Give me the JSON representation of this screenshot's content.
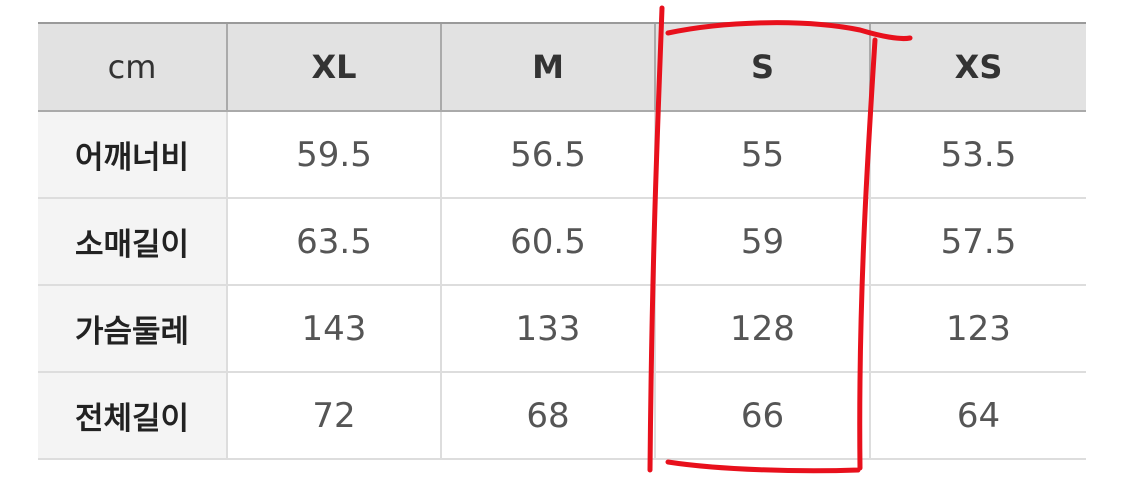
{
  "table": {
    "unit_header": "cm",
    "sizes": [
      "XL",
      "M",
      "S",
      "XS"
    ],
    "rows": [
      {
        "label": "어깨너비",
        "values": [
          "59.5",
          "56.5",
          "55",
          "53.5"
        ]
      },
      {
        "label": "소매길이",
        "values": [
          "63.5",
          "60.5",
          "59",
          "57.5"
        ]
      },
      {
        "label": "가슴둘레",
        "values": [
          "143",
          "133",
          "128",
          "123"
        ]
      },
      {
        "label": "전체길이",
        "values": [
          "72",
          "68",
          "66",
          "64"
        ]
      }
    ]
  },
  "annotation": {
    "highlighted_size": "S",
    "color": "#e8101c"
  }
}
